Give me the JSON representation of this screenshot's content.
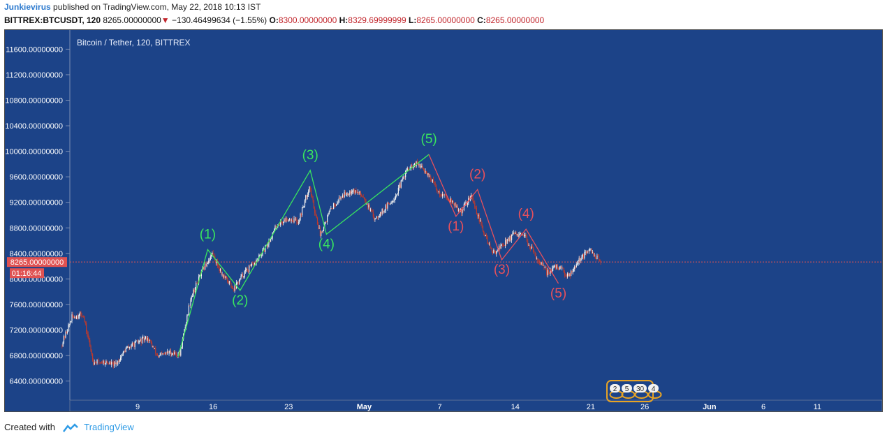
{
  "header": {
    "author": "Junkievirus",
    "published_text": "published on TradingView.com, May 22, 2018 10:13 IST",
    "symbol_line": "BITTREX:BTCUSDT, 120",
    "last_price": "8265.00000000",
    "down_arrow": "▼",
    "change": "−130.46499634 (−1.55%)",
    "o_label": "O:",
    "o_value": "8300.00000000",
    "h_label": "H:",
    "h_value": "8329.69999999",
    "l_label": "L:",
    "l_value": "8265.00000000",
    "c_label": "C:",
    "c_value": "8265.00000000"
  },
  "footer": {
    "created_with": "Created with",
    "brand": "TradingView"
  },
  "colors": {
    "chart_bg": "#1c4388",
    "axis_bg": "#1c4388",
    "axis_text": "#ffffff",
    "bull_wave": "#39e55e",
    "bear_wave": "#e8505b",
    "price_line": "#e05252",
    "candle_up": "#f2f2f2",
    "candle_down": "#c0392b"
  },
  "chart_data": {
    "type": "candlestick",
    "title": "Bitcoin / Tether, 120, BITTREX",
    "ylim": [
      6100,
      11900
    ],
    "y_ticks": [
      "11600.00000000",
      "11200.00000000",
      "10800.00000000",
      "10400.00000000",
      "10000.00000000",
      "9600.00000000",
      "9200.00000000",
      "8800.00000000",
      "8400.00000000",
      "8000.00000000",
      "7600.00000000",
      "7200.00000000",
      "6800.00000000",
      "6400.00000000"
    ],
    "x_ticks": [
      "9",
      "16",
      "23",
      "May",
      "7",
      "14",
      "21",
      "26",
      "Jun",
      "6",
      "11"
    ],
    "current_price_label": "8265.00000000",
    "countdown": "01:16:44",
    "price_path": [
      [
        "2018-04-02",
        6950
      ],
      [
        "2018-04-03",
        7400
      ],
      [
        "2018-04-04",
        7450
      ],
      [
        "2018-04-05",
        6700
      ],
      [
        "2018-04-06",
        6700
      ],
      [
        "2018-04-07",
        6650
      ],
      [
        "2018-04-08",
        6900
      ],
      [
        "2018-04-09",
        7000
      ],
      [
        "2018-04-10",
        7080
      ],
      [
        "2018-04-11",
        6780
      ],
      [
        "2018-04-12",
        6850
      ],
      [
        "2018-04-13",
        6820
      ],
      [
        "2018-04-14",
        7700
      ],
      [
        "2018-04-15",
        8100
      ],
      [
        "2018-04-16",
        8400
      ],
      [
        "2018-04-17",
        8050
      ],
      [
        "2018-04-18",
        7850
      ],
      [
        "2018-04-19",
        8100
      ],
      [
        "2018-04-20",
        8250
      ],
      [
        "2018-04-21",
        8500
      ],
      [
        "2018-04-22",
        8850
      ],
      [
        "2018-04-23",
        8950
      ],
      [
        "2018-04-24",
        8900
      ],
      [
        "2018-04-25",
        9450
      ],
      [
        "2018-04-26",
        8700
      ],
      [
        "2018-04-27",
        9100
      ],
      [
        "2018-04-28",
        9300
      ],
      [
        "2018-04-29",
        9400
      ],
      [
        "2018-04-30",
        9300
      ],
      [
        "2018-05-01",
        8950
      ],
      [
        "2018-05-02",
        9100
      ],
      [
        "2018-05-03",
        9300
      ],
      [
        "2018-05-04",
        9700
      ],
      [
        "2018-05-05",
        9800
      ],
      [
        "2018-05-06",
        9650
      ],
      [
        "2018-05-07",
        9350
      ],
      [
        "2018-05-08",
        9250
      ],
      [
        "2018-05-09",
        9050
      ],
      [
        "2018-05-10",
        9300
      ],
      [
        "2018-05-11",
        8800
      ],
      [
        "2018-05-12",
        8400
      ],
      [
        "2018-05-13",
        8550
      ],
      [
        "2018-05-14",
        8700
      ],
      [
        "2018-05-15",
        8650
      ],
      [
        "2018-05-16",
        8350
      ],
      [
        "2018-05-17",
        8100
      ],
      [
        "2018-05-18",
        8200
      ],
      [
        "2018-05-19",
        8050
      ],
      [
        "2018-05-20",
        8300
      ],
      [
        "2018-05-21",
        8450
      ],
      [
        "2018-05-22",
        8265
      ]
    ],
    "annotations": [
      {
        "text": "(1)",
        "x": "2018-04-15 12:00",
        "y": 8460,
        "color": "bull"
      },
      {
        "text": "(2)",
        "x": "2018-04-18 12:00",
        "y": 7820,
        "color": "bull"
      },
      {
        "text": "(3)",
        "x": "2018-04-25 00:00",
        "y": 9700,
        "color": "bull"
      },
      {
        "text": "(4)",
        "x": "2018-04-26 12:00",
        "y": 8700,
        "color": "bull"
      },
      {
        "text": "(5)",
        "x": "2018-05-06 00:00",
        "y": 9950,
        "color": "bull"
      },
      {
        "text": "(1)",
        "x": "2018-05-08 12:00",
        "y": 8980,
        "color": "bear"
      },
      {
        "text": "(2)",
        "x": "2018-05-10 12:00",
        "y": 9400,
        "color": "bear"
      },
      {
        "text": "(3)",
        "x": "2018-05-12 18:00",
        "y": 8300,
        "color": "bear"
      },
      {
        "text": "(4)",
        "x": "2018-05-15 00:00",
        "y": 8780,
        "color": "bear"
      },
      {
        "text": "(5)",
        "x": "2018-05-18 00:00",
        "y": 7930,
        "color": "bear"
      }
    ],
    "bull_wave_path": [
      [
        "2018-04-12 18:00",
        6780
      ],
      [
        "2018-04-15 12:00",
        8460
      ],
      [
        "2018-04-18 12:00",
        7820
      ],
      [
        "2018-04-25 00:00",
        9700
      ],
      [
        "2018-04-26 12:00",
        8700
      ],
      [
        "2018-05-06 00:00",
        9950
      ]
    ],
    "bear_wave_path": [
      [
        "2018-05-06 00:00",
        9950
      ],
      [
        "2018-05-08 12:00",
        8980
      ],
      [
        "2018-05-10 12:00",
        9400
      ],
      [
        "2018-05-12 18:00",
        8300
      ],
      [
        "2018-05-15 00:00",
        8780
      ],
      [
        "2018-05-18 00:00",
        7930
      ]
    ],
    "event_badges": [
      "2",
      "5",
      "30",
      "4"
    ]
  }
}
